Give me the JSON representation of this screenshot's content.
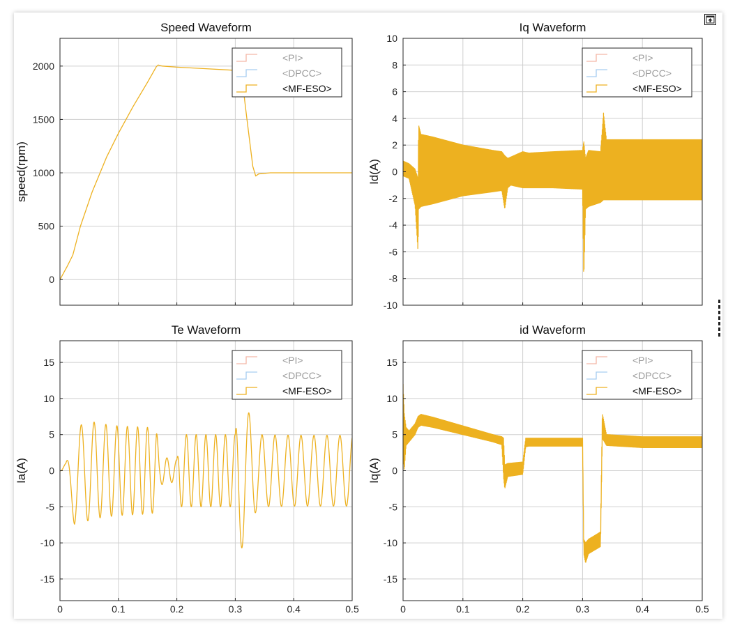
{
  "chart_data": [
    {
      "type": "line",
      "title": "Speed Waveform",
      "xlabel": "",
      "ylabel": "speed(rpm)",
      "xlim": [
        0,
        0.5
      ],
      "ylim": [
        -240,
        2260
      ],
      "xticks": [
        0,
        0.1,
        0.2,
        0.3,
        0.4,
        0.5
      ],
      "xtick_labels": [
        "",
        "",
        "",
        "",
        "",
        ""
      ],
      "yticks": [
        0,
        500,
        1000,
        1500,
        2000
      ],
      "ytick_labels": [
        "0",
        "500",
        "1000",
        "1500",
        "2000"
      ],
      "grid": true,
      "legend_position": "top-right",
      "series": [
        {
          "name": "<PI>",
          "color": "#f4b6a6",
          "active": false,
          "values": []
        },
        {
          "name": "<DPCC>",
          "color": "#a6cdf0",
          "active": false,
          "values": []
        },
        {
          "name": "<MF-ESO>",
          "color": "#edb120",
          "active": true,
          "x": [
            0,
            0.002,
            0.012,
            0.022,
            0.035,
            0.055,
            0.08,
            0.1,
            0.125,
            0.15,
            0.165,
            0.168,
            0.175,
            0.2,
            0.25,
            0.3,
            0.31,
            0.32,
            0.33,
            0.335,
            0.34,
            0.36,
            0.4,
            0.45,
            0.5
          ],
          "values": [
            0,
            20,
            120,
            230,
            500,
            820,
            1150,
            1370,
            1620,
            1850,
            1995,
            2010,
            2000,
            1990,
            1975,
            1960,
            1955,
            1500,
            1060,
            970,
            990,
            1000,
            1000,
            1000,
            1000
          ]
        }
      ]
    },
    {
      "type": "line",
      "title": "Iq Waveform",
      "xlabel": "",
      "ylabel": "Id(A)",
      "xlim": [
        0,
        0.5
      ],
      "ylim": [
        -10,
        10
      ],
      "xticks": [
        0,
        0.1,
        0.2,
        0.3,
        0.4,
        0.5
      ],
      "xtick_labels": [
        "",
        "",
        "",
        "",
        "",
        ""
      ],
      "yticks": [
        -10,
        -8,
        -6,
        -4,
        -2,
        0,
        2,
        4,
        6,
        8,
        10
      ],
      "ytick_labels": [
        "-10",
        "-8",
        "-6",
        "-4",
        "-2",
        "0",
        "2",
        "4",
        "6",
        "8",
        "10"
      ],
      "grid": true,
      "legend_position": "top-right",
      "series": [
        {
          "name": "<PI>",
          "color": "#f4b6a6",
          "active": false,
          "values": []
        },
        {
          "name": "<DPCC>",
          "color": "#a6cdf0",
          "active": false,
          "values": []
        },
        {
          "name": "<MF-ESO>",
          "color": "#edb120",
          "active": true,
          "x": [
            0,
            0.01,
            0.02,
            0.025,
            0.026,
            0.03,
            0.05,
            0.1,
            0.15,
            0.165,
            0.17,
            0.175,
            0.18,
            0.2,
            0.21,
            0.25,
            0.3,
            0.302,
            0.305,
            0.31,
            0.33,
            0.335,
            0.34,
            0.4,
            0.45,
            0.5
          ],
          "upper": [
            0.8,
            0.6,
            0.2,
            -0.5,
            3.5,
            2.8,
            2.6,
            2.0,
            1.6,
            1.5,
            1.2,
            1.0,
            1.1,
            1.5,
            1.4,
            1.5,
            1.6,
            2.3,
            1.0,
            1.6,
            1.5,
            4.4,
            2.4,
            2.4,
            2.4,
            2.4
          ],
          "lower": [
            -0.3,
            -0.5,
            -2.5,
            -6.0,
            -2.8,
            -2.6,
            -2.4,
            -1.8,
            -1.5,
            -1.4,
            -2.8,
            -1.2,
            -1.0,
            -1.2,
            -1.2,
            -1.2,
            -1.3,
            -8.2,
            -2.8,
            -2.6,
            -2.3,
            -2.1,
            -2.1,
            -2.1,
            -2.1,
            -2.1
          ]
        }
      ]
    },
    {
      "type": "line",
      "title": "Te Waveform",
      "xlabel": "",
      "ylabel": "Ia(A)",
      "xlim": [
        0,
        0.5
      ],
      "ylim": [
        -18,
        18
      ],
      "xticks": [
        0,
        0.1,
        0.2,
        0.3,
        0.4,
        0.5
      ],
      "xtick_labels": [
        "0",
        "0.1",
        "0.2",
        "0.3",
        "0.4",
        "0.5"
      ],
      "yticks": [
        -15,
        -10,
        -5,
        0,
        5,
        10,
        15
      ],
      "ytick_labels": [
        "-15",
        "-10",
        "-5",
        "0",
        "5",
        "10",
        "15"
      ],
      "grid": true,
      "legend_position": "top-right",
      "series": [
        {
          "name": "<PI>",
          "color": "#f4b6a6",
          "active": false,
          "values": []
        },
        {
          "name": "<DPCC>",
          "color": "#a6cdf0",
          "active": false,
          "values": []
        },
        {
          "name": "<MF-ESO>",
          "color": "#edb120",
          "active": true,
          "x": [
            0,
            0.01,
            0.025,
            0.045,
            0.07,
            0.1,
            0.15,
            0.165,
            0.17,
            0.2,
            0.205,
            0.25,
            0.3,
            0.305,
            0.31,
            0.33,
            0.34,
            0.4,
            0.5
          ],
          "envelope": [
            0.5,
            2.0,
            6.5,
            7.0,
            6.5,
            6.2,
            6.0,
            5.8,
            2.0,
            1.5,
            5.0,
            5.0,
            5.0,
            12.5,
            11.0,
            6.5,
            5.0,
            4.9,
            4.9
          ],
          "center": [
            0,
            -1,
            -1,
            0,
            0,
            0,
            0,
            0,
            0,
            0,
            0,
            0,
            0,
            0,
            0,
            0,
            0,
            0,
            0
          ],
          "freq": [
            20,
            30,
            40,
            45,
            50,
            55,
            60,
            60,
            60,
            60,
            60,
            60,
            60,
            35,
            40,
            45,
            45,
            45,
            45
          ]
        }
      ]
    },
    {
      "type": "line",
      "title": "id Waveform",
      "xlabel": "",
      "ylabel": "Iq(A)",
      "xlim": [
        0,
        0.5
      ],
      "ylim": [
        -18,
        18
      ],
      "xticks": [
        0,
        0.1,
        0.2,
        0.3,
        0.4,
        0.5
      ],
      "xtick_labels": [
        "0",
        "0.1",
        "0.2",
        "0.3",
        "0.4",
        "0.5"
      ],
      "yticks": [
        -15,
        -10,
        -5,
        0,
        5,
        10,
        15
      ],
      "ytick_labels": [
        "-15",
        "-10",
        "-5",
        "0",
        "5",
        "10",
        "15"
      ],
      "grid": true,
      "legend_position": "top-right",
      "series": [
        {
          "name": "<PI>",
          "color": "#f4b6a6",
          "active": false,
          "values": []
        },
        {
          "name": "<DPCC>",
          "color": "#a6cdf0",
          "active": false,
          "values": []
        },
        {
          "name": "<MF-ESO>",
          "color": "#edb120",
          "active": true,
          "x": [
            0,
            0.002,
            0.005,
            0.01,
            0.02,
            0.025,
            0.03,
            0.05,
            0.1,
            0.15,
            0.165,
            0.168,
            0.17,
            0.175,
            0.2,
            0.205,
            0.21,
            0.25,
            0.3,
            0.302,
            0.305,
            0.31,
            0.33,
            0.333,
            0.34,
            0.4,
            0.45,
            0.5
          ],
          "upper": [
            12,
            8,
            6,
            5.5,
            6.5,
            7.5,
            7.8,
            7.4,
            6.2,
            5.0,
            4.7,
            4.5,
            0.8,
            1.0,
            1.2,
            4.5,
            4.5,
            4.5,
            4.5,
            -9.5,
            -10,
            -9.5,
            -8.5,
            8.0,
            5.0,
            4.7,
            4.7,
            4.7
          ],
          "lower": [
            2,
            0,
            3.5,
            4.0,
            5.0,
            6.0,
            6.3,
            6.0,
            5.0,
            4.0,
            3.6,
            -1.0,
            -2.5,
            -0.8,
            -0.5,
            3.3,
            3.4,
            3.4,
            3.4,
            -11.5,
            -12.8,
            -11.5,
            -10.5,
            4.5,
            3.5,
            3.2,
            3.2,
            3.2
          ]
        }
      ]
    }
  ],
  "toolbar": {
    "undock_icon": "undock-icon"
  }
}
